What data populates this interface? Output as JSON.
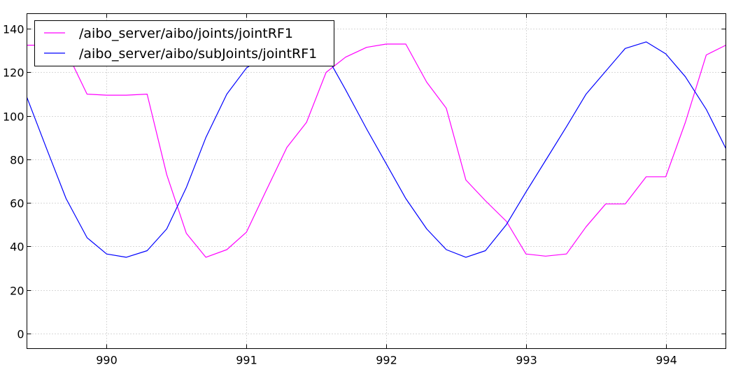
{
  "chart_data": {
    "type": "line",
    "title": "",
    "xlabel": "",
    "ylabel": "",
    "xlim": [
      989.43,
      994.43
    ],
    "ylim": [
      -7,
      147
    ],
    "grid": true,
    "legend_position": "top-left",
    "x_ticks": [
      990,
      991,
      992,
      993,
      994
    ],
    "y_ticks": [
      0,
      20,
      40,
      60,
      80,
      100,
      120,
      140
    ],
    "series": [
      {
        "name": "/aibo_server/aibo/joints/jointRF1",
        "color": "#ff00ff",
        "x": [
          989.43,
          989.5,
          989.57,
          989.71,
          989.86,
          990.0,
          990.14,
          990.29,
          990.43,
          990.57,
          990.71,
          990.86,
          991.0,
          991.14,
          991.29,
          991.43,
          991.57,
          991.71,
          991.86,
          992.0,
          992.14,
          992.29,
          992.43,
          992.57,
          992.71,
          992.86,
          993.0,
          993.14,
          993.29,
          993.43,
          993.57,
          993.71,
          993.86,
          994.0,
          994.14,
          994.29,
          994.43
        ],
        "y": [
          132.5,
          132.5,
          133,
          130,
          110,
          109.5,
          109.5,
          110,
          73,
          46,
          35,
          38.5,
          46.5,
          65.5,
          85.5,
          97,
          120,
          127,
          131.5,
          133,
          133,
          115.5,
          103.5,
          70.5,
          61,
          51.5,
          36.5,
          35.5,
          36.5,
          49,
          59.5,
          59.5,
          72,
          72,
          97,
          128,
          132.5
        ]
      },
      {
        "name": "/aibo_server/aibo/subJoints/jointRF1",
        "color": "#0000ff",
        "x": [
          989.43,
          989.57,
          989.71,
          989.86,
          990.0,
          990.14,
          990.29,
          990.43,
          990.57,
          990.71,
          990.86,
          991.0,
          991.14,
          991.29,
          991.43,
          991.57,
          991.71,
          991.86,
          992.0,
          992.14,
          992.29,
          992.43,
          992.57,
          992.71,
          992.86,
          993.0,
          993.14,
          993.29,
          993.43,
          993.57,
          993.71,
          993.86,
          994.0,
          994.14,
          994.29,
          994.43
        ],
        "y": [
          108.5,
          85,
          62,
          44,
          36.5,
          35,
          38,
          48,
          67,
          90,
          110,
          122,
          128,
          132,
          131.5,
          128,
          112,
          94,
          78,
          62,
          48,
          38.5,
          35,
          38,
          50,
          65,
          79.5,
          95,
          110,
          120.5,
          131,
          134,
          128.5,
          118,
          103,
          85
        ]
      }
    ]
  }
}
